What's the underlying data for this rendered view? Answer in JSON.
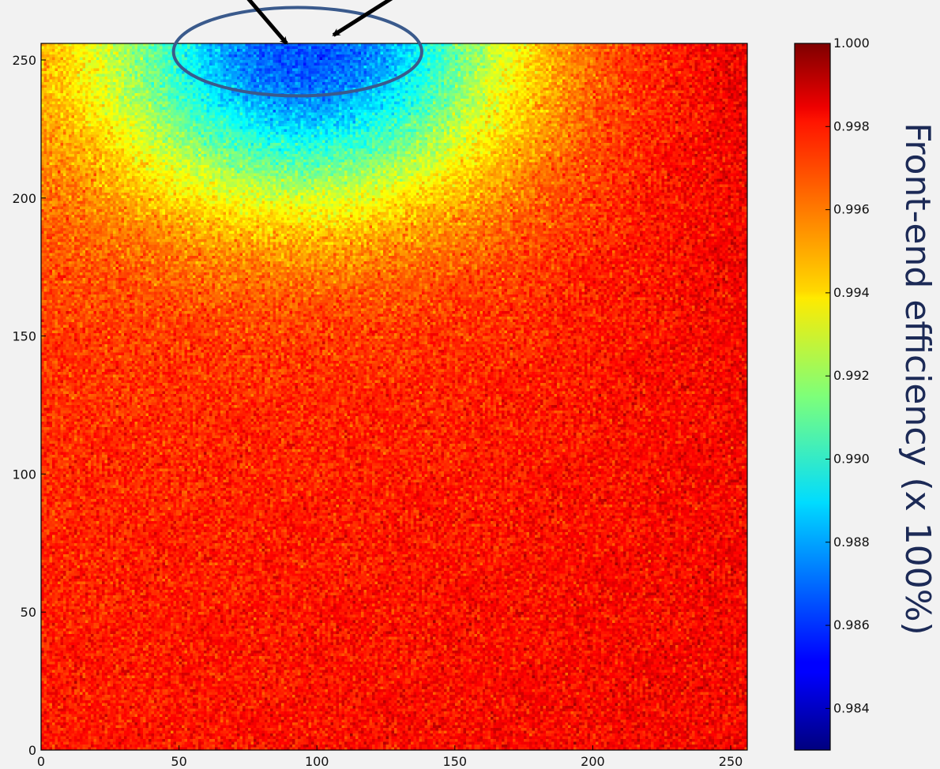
{
  "chart_data": {
    "type": "heatmap",
    "title": "",
    "xlabel": "",
    "ylabel": "",
    "xlim": [
      0,
      256
    ],
    "ylim": [
      0,
      256
    ],
    "grid": false,
    "x_ticks": [
      "0",
      "50",
      "100",
      "150",
      "200",
      "250"
    ],
    "y_ticks": [
      "0",
      "50",
      "100",
      "150",
      "200",
      "250"
    ],
    "x_tick_values": [
      0,
      50,
      100,
      150,
      200,
      250
    ],
    "y_tick_values": [
      0,
      50,
      100,
      150,
      200,
      250
    ],
    "colormap": "jet",
    "colorbar": {
      "label": "Front-end efficiency (x 100%)",
      "range": [
        0.983,
        1.0
      ],
      "ticks": [
        "1.000",
        "0.998",
        "0.996",
        "0.994",
        "0.992",
        "0.990",
        "0.988",
        "0.986",
        "0.984"
      ],
      "tick_values": [
        1.0,
        0.998,
        0.996,
        0.994,
        0.992,
        0.99,
        0.988,
        0.986,
        0.984
      ],
      "placement": "right"
    },
    "pixel_grid": [
      256,
      256
    ],
    "field_description": {
      "mean_bottom_left": 0.9975,
      "mean_bottom_right": 0.998,
      "mean_mid": 0.9965,
      "mean_top_edge": 0.9935,
      "min_region_center": [
        95,
        254
      ],
      "min_region_value": 0.9855,
      "noise_std": 0.0008
    },
    "annotations": [
      {
        "type": "ellipse",
        "target": "low-efficiency region",
        "center": [
          93,
          253
        ],
        "radii": [
          45,
          16
        ],
        "color": "#3a5a8c"
      },
      {
        "type": "arrow",
        "to": [
          89,
          256
        ],
        "color": "#000000"
      },
      {
        "type": "arrow",
        "to": [
          106,
          259
        ],
        "color": "#000000"
      }
    ]
  }
}
